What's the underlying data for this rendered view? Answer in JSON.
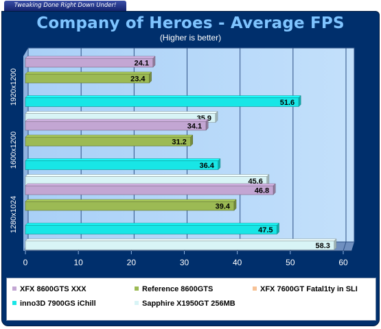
{
  "banner": "Tweaking Done Right Down Under!",
  "chart_data": {
    "type": "bar",
    "orientation": "horizontal",
    "title": "Company of Heroes - Average FPS",
    "subtitle": "(Higher is better)",
    "categories": [
      "1920x1200",
      "1600x1200",
      "1280x1024"
    ],
    "series": [
      {
        "name": "XFX 8600GTS XXX",
        "color": "#c3a6d3",
        "values": [
          24.1,
          34.1,
          46.8
        ]
      },
      {
        "name": "Reference 8600GTS",
        "color": "#9cba54",
        "values": [
          23.4,
          31.2,
          39.4
        ]
      },
      {
        "name": "XFX 7600GT Fatal1ty in SLI",
        "color": "#f7c296",
        "values": [
          null,
          null,
          null
        ]
      },
      {
        "name": "inno3D 7900GS iChill",
        "color": "#18e6e6",
        "values": [
          51.6,
          36.4,
          47.5
        ]
      },
      {
        "name": "Sapphire X1950GT 256MB",
        "color": "#d8f4f6",
        "values": [
          35.9,
          45.6,
          58.3
        ]
      }
    ],
    "xlim": [
      0,
      60
    ],
    "xticks": [
      "0",
      "10",
      "20",
      "30",
      "40",
      "50",
      "60"
    ],
    "grid": true,
    "legend_position": "bottom"
  }
}
